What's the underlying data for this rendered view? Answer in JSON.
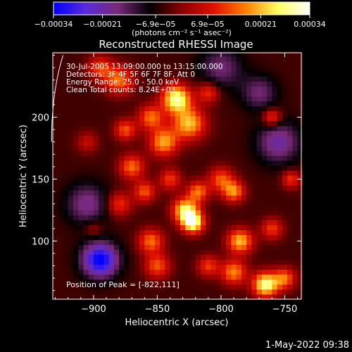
{
  "chart_data": {
    "type": "heatmap",
    "title": "Reconstructed RHESSI Image",
    "xlabel": "Heliocentric X (arcsec)",
    "ylabel": "Heliocentric Y (arcsec)",
    "xlim": [
      -932,
      -737
    ],
    "ylim": [
      53,
      252
    ],
    "x_ticks": [
      -900,
      -850,
      -800,
      -750
    ],
    "y_ticks": [
      100,
      150,
      200
    ],
    "x_tick_labels": [
      "−900",
      "−850",
      "−800",
      "−750"
    ],
    "y_tick_labels": [
      "100",
      "150",
      "200"
    ],
    "colorbar": {
      "range": [
        -0.00034,
        0.00034
      ],
      "ticks": [
        -0.00034,
        -0.00021,
        -6.9e-05,
        6.9e-05,
        0.00021,
        0.00034
      ],
      "tick_labels": [
        "−0.00034",
        "−0.00021",
        "−6.9e−05",
        "6.9e−05",
        "0.00021",
        "0.00034"
      ],
      "units_label": "(photons cm⁻² s⁻¹ asec⁻²)",
      "colors": [
        "#0000ff",
        "#5a2bd8",
        "#7a2a7a",
        "#000000",
        "#8a0000",
        "#e01000",
        "#ff8000",
        "#ffff60",
        "#ffffff"
      ]
    },
    "annotations": [
      "30-Jul-2005 13:09:00.000 to 13:15:00.000",
      "Detectors: 3F 4F 5F 6F 7F 8F, Att 0",
      "Energy Range: 25.0 - 50.0 keV",
      "Clean    Total counts: 8.24E+03"
    ],
    "peak_label": "Position of Peak = [-822,111]",
    "peak_position": [
      -822,
      111
    ],
    "limb_curve": [
      [
        -924,
        250
      ],
      [
        -933,
        220
      ],
      [
        -933,
        180
      ]
    ],
    "hotspots": [
      {
        "x": -835,
        "y": 215,
        "amplitude": 0.00034,
        "width": 8
      },
      {
        "x": -825,
        "y": 195,
        "amplitude": 0.00026,
        "width": 9
      },
      {
        "x": -845,
        "y": 180,
        "amplitude": 0.00024,
        "width": 8
      },
      {
        "x": -855,
        "y": 200,
        "amplitude": 0.0002,
        "width": 7
      },
      {
        "x": -880,
        "y": 230,
        "amplitude": 0.0002,
        "width": 8
      },
      {
        "x": -895,
        "y": 240,
        "amplitude": 0.00016,
        "width": 7
      },
      {
        "x": -870,
        "y": 160,
        "amplitude": 0.0002,
        "width": 7
      },
      {
        "x": -880,
        "y": 130,
        "amplitude": 0.00016,
        "width": 7
      },
      {
        "x": -860,
        "y": 140,
        "amplitude": 0.00018,
        "width": 6
      },
      {
        "x": -822,
        "y": 115,
        "amplitude": 0.00034,
        "width": 6
      },
      {
        "x": -828,
        "y": 125,
        "amplitude": 0.0003,
        "width": 7
      },
      {
        "x": -818,
        "y": 140,
        "amplitude": 0.0002,
        "width": 6
      },
      {
        "x": -800,
        "y": 150,
        "amplitude": 0.00018,
        "width": 7
      },
      {
        "x": -790,
        "y": 140,
        "amplitude": 0.00022,
        "width": 6
      },
      {
        "x": -785,
        "y": 100,
        "amplitude": 0.00026,
        "width": 7
      },
      {
        "x": -790,
        "y": 75,
        "amplitude": 0.00022,
        "width": 7
      },
      {
        "x": -765,
        "y": 65,
        "amplitude": 0.00034,
        "width": 7
      },
      {
        "x": -750,
        "y": 70,
        "amplitude": 0.0002,
        "width": 6
      },
      {
        "x": -760,
        "y": 110,
        "amplitude": 0.00016,
        "width": 6
      },
      {
        "x": -855,
        "y": 100,
        "amplitude": 0.0002,
        "width": 7
      },
      {
        "x": -850,
        "y": 80,
        "amplitude": 0.00018,
        "width": 7
      },
      {
        "x": -810,
        "y": 80,
        "amplitude": 0.00016,
        "width": 6
      },
      {
        "x": -905,
        "y": 180,
        "amplitude": 0.0001,
        "width": 6
      },
      {
        "x": -760,
        "y": 200,
        "amplitude": 0.00018,
        "width": 5
      },
      {
        "x": -745,
        "y": 150,
        "amplitude": 0.00016,
        "width": 5
      },
      {
        "x": -810,
        "y": 220,
        "amplitude": 0.00016,
        "width": 6
      },
      {
        "x": -875,
        "y": 190,
        "amplitude": 0.00018,
        "width": 6
      },
      {
        "x": -840,
        "y": 150,
        "amplitude": 0.00016,
        "width": 6
      },
      {
        "x": -900,
        "y": 110,
        "amplitude": 8e-05,
        "width": 5
      }
    ],
    "coldspots": [
      {
        "x": -895,
        "y": 85,
        "amplitude": -0.0003,
        "width": 10
      },
      {
        "x": -905,
        "y": 130,
        "amplitude": -0.00014,
        "width": 12
      },
      {
        "x": -755,
        "y": 180,
        "amplitude": -0.00016,
        "width": 12
      },
      {
        "x": -800,
        "y": 240,
        "amplitude": -0.00012,
        "width": 12
      },
      {
        "x": -770,
        "y": 220,
        "amplitude": -0.00012,
        "width": 10
      }
    ]
  },
  "footer": {
    "timestamp": "1-May-2022 09:38"
  }
}
